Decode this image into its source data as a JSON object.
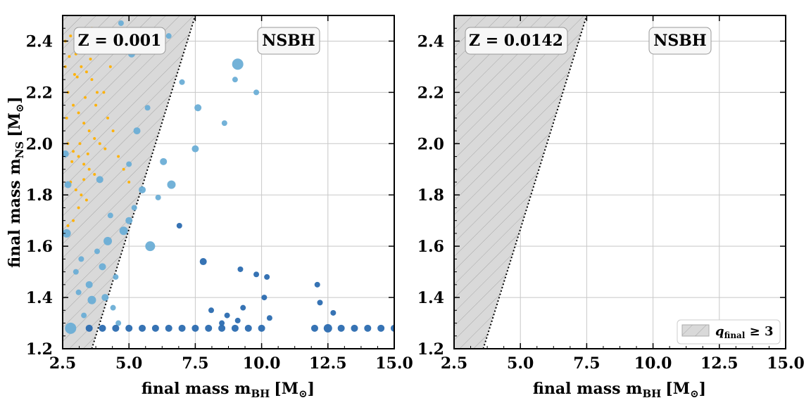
{
  "chart_data": [
    {
      "type": "scatter",
      "panel": "left",
      "xlabel": "final mass m_BH [M_⊙]",
      "ylabel": "final mass m_NS [M_⊙]",
      "xlim": [
        2.5,
        15.0
      ],
      "ylim": [
        1.2,
        2.5
      ],
      "xticks": [
        "2.5",
        "5.0",
        "7.5",
        "10.0",
        "12.5",
        "15.0"
      ],
      "yticks": [
        "1.2",
        "1.4",
        "1.6",
        "1.8",
        "2.0",
        "2.2",
        "2.4"
      ],
      "grid": true,
      "annotations": [
        "Z = 0.001",
        "NSBH"
      ],
      "shaded_region": {
        "label": "q_final ≥ 3",
        "boundary_ratio": 3,
        "color": "#d9d9d9",
        "hatch": "/"
      },
      "series": [
        {
          "color": "#ffb000",
          "points": [
            [
              2.6,
              2.4
            ],
            [
              2.8,
              2.42
            ],
            [
              3.0,
              2.35
            ],
            [
              3.2,
              2.3
            ],
            [
              3.4,
              2.28
            ],
            [
              3.6,
              2.25
            ],
            [
              3.8,
              2.2
            ],
            [
              2.7,
              2.2
            ],
            [
              2.9,
              2.15
            ],
            [
              3.1,
              2.12
            ],
            [
              3.3,
              2.08
            ],
            [
              3.5,
              2.05
            ],
            [
              3.7,
              2.02
            ],
            [
              3.9,
              2.0
            ],
            [
              4.1,
              1.98
            ],
            [
              2.7,
              2.0
            ],
            [
              2.9,
              1.97
            ],
            [
              3.1,
              1.95
            ],
            [
              3.3,
              1.92
            ],
            [
              3.5,
              1.9
            ],
            [
              3.7,
              1.88
            ],
            [
              2.8,
              1.85
            ],
            [
              3.0,
              1.82
            ],
            [
              3.2,
              1.8
            ],
            [
              3.4,
              1.78
            ],
            [
              2.9,
              1.7
            ],
            [
              2.7,
              1.68
            ],
            [
              4.2,
              2.1
            ],
            [
              4.4,
              2.05
            ],
            [
              4.6,
              1.95
            ],
            [
              4.8,
              1.9
            ],
            [
              5.0,
              1.85
            ],
            [
              4.3,
              2.3
            ],
            [
              4.0,
              2.4
            ],
            [
              3.6,
              2.45
            ],
            [
              2.6,
              2.3
            ],
            [
              2.65,
              2.1
            ],
            [
              3.05,
              2.26
            ],
            [
              3.35,
              2.18
            ],
            [
              3.15,
              2.0
            ],
            [
              2.85,
              1.93
            ],
            [
              3.45,
              1.96
            ],
            [
              3.25,
              2.38
            ],
            [
              2.75,
              2.34
            ],
            [
              3.75,
              2.15
            ],
            [
              4.05,
              2.2
            ],
            [
              3.55,
              2.33
            ],
            [
              2.95,
              2.27
            ],
            [
              3.1,
              1.75
            ],
            [
              3.3,
              1.86
            ]
          ],
          "sizes": [
            2,
            2,
            2,
            2,
            2,
            2,
            2,
            2,
            2,
            2,
            2,
            2,
            2,
            2,
            2,
            2,
            2,
            2,
            2,
            2,
            2,
            2,
            2,
            2,
            2,
            2,
            2,
            2,
            2,
            2,
            2,
            2,
            2,
            2,
            2,
            2,
            2,
            2,
            2,
            2,
            2,
            2,
            2,
            2,
            2,
            2,
            2,
            2,
            2,
            2
          ]
        },
        {
          "color": "#6baed6",
          "points": [
            [
              2.6,
              1.96
            ],
            [
              2.7,
              1.84
            ],
            [
              2.65,
              1.65
            ],
            [
              3.0,
              1.5
            ],
            [
              3.2,
              1.55
            ],
            [
              3.5,
              1.45
            ],
            [
              3.8,
              1.58
            ],
            [
              4.0,
              1.52
            ],
            [
              4.2,
              1.62
            ],
            [
              4.5,
              1.48
            ],
            [
              4.8,
              1.66
            ],
            [
              5.0,
              1.7
            ],
            [
              5.2,
              1.75
            ],
            [
              5.5,
              1.82
            ],
            [
              5.8,
              1.6
            ],
            [
              6.1,
              1.79
            ],
            [
              6.3,
              1.93
            ],
            [
              6.6,
              1.84
            ],
            [
              7.5,
              1.98
            ],
            [
              4.1,
              1.4
            ],
            [
              4.4,
              1.36
            ],
            [
              4.6,
              1.3
            ],
            [
              3.3,
              1.33
            ],
            [
              3.9,
              1.86
            ],
            [
              4.3,
              1.72
            ],
            [
              5.0,
              1.92
            ],
            [
              5.3,
              2.05
            ],
            [
              5.7,
              2.14
            ],
            [
              7.0,
              2.24
            ],
            [
              7.6,
              2.14
            ],
            [
              8.6,
              2.08
            ],
            [
              9.0,
              2.25
            ],
            [
              9.1,
              2.31
            ],
            [
              9.8,
              2.2
            ],
            [
              10.0,
              2.37
            ],
            [
              6.5,
              2.42
            ],
            [
              5.1,
              2.35
            ],
            [
              4.7,
              2.47
            ],
            [
              3.6,
              1.39
            ],
            [
              2.8,
              1.28
            ],
            [
              3.1,
              1.42
            ]
          ],
          "sizes": [
            5,
            5,
            6,
            4,
            4,
            5,
            4,
            5,
            6,
            4,
            6,
            5,
            4,
            5,
            7,
            4,
            5,
            6,
            5,
            5,
            4,
            4,
            4,
            5,
            4,
            4,
            5,
            4,
            4,
            5,
            4,
            4,
            8,
            4,
            5,
            4,
            5,
            4,
            6,
            8,
            4
          ]
        },
        {
          "color": "#2b6cb0",
          "points": [
            [
              3.5,
              1.28
            ],
            [
              4.0,
              1.28
            ],
            [
              4.5,
              1.28
            ],
            [
              5.0,
              1.28
            ],
            [
              5.5,
              1.28
            ],
            [
              6.0,
              1.28
            ],
            [
              6.5,
              1.28
            ],
            [
              7.0,
              1.28
            ],
            [
              7.5,
              1.28
            ],
            [
              8.0,
              1.28
            ],
            [
              8.5,
              1.28
            ],
            [
              9.0,
              1.28
            ],
            [
              9.5,
              1.28
            ],
            [
              10.0,
              1.28
            ],
            [
              12.0,
              1.28
            ],
            [
              12.5,
              1.28
            ],
            [
              13.0,
              1.28
            ],
            [
              13.5,
              1.28
            ],
            [
              14.0,
              1.28
            ],
            [
              14.5,
              1.28
            ],
            [
              15.0,
              1.28
            ],
            [
              6.9,
              1.68
            ],
            [
              7.8,
              1.54
            ],
            [
              9.2,
              1.51
            ],
            [
              9.8,
              1.49
            ],
            [
              10.2,
              1.48
            ],
            [
              12.1,
              1.45
            ],
            [
              8.1,
              1.35
            ],
            [
              8.7,
              1.33
            ],
            [
              9.3,
              1.36
            ],
            [
              10.1,
              1.4
            ],
            [
              10.3,
              1.32
            ],
            [
              12.2,
              1.38
            ],
            [
              12.7,
              1.34
            ],
            [
              8.5,
              1.3
            ],
            [
              9.1,
              1.31
            ]
          ],
          "sizes": [
            5,
            5,
            5,
            5,
            5,
            5,
            5,
            5,
            5,
            5,
            5,
            5,
            5,
            5,
            5,
            6,
            5,
            5,
            5,
            5,
            5,
            4,
            5,
            4,
            4,
            4,
            4,
            4,
            4,
            4,
            4,
            4,
            4,
            4,
            4,
            4
          ]
        }
      ]
    },
    {
      "type": "scatter",
      "panel": "right",
      "xlabel": "final mass m_BH [M_⊙]",
      "ylabel": "",
      "xlim": [
        2.5,
        15.0
      ],
      "ylim": [
        1.2,
        2.5
      ],
      "xticks": [
        "2.5",
        "5.0",
        "7.5",
        "10.0",
        "12.5",
        "15.0"
      ],
      "yticks": [
        "1.2",
        "1.4",
        "1.6",
        "1.8",
        "2.0",
        "2.2",
        "2.4"
      ],
      "grid": true,
      "annotations": [
        "Z = 0.0142",
        "NSBH"
      ],
      "legend": {
        "placement": "bottom-right",
        "entries": [
          "q_final ≥ 3"
        ]
      },
      "shaded_region": {
        "label": "q_final ≥ 3",
        "boundary_ratio": 3,
        "color": "#d9d9d9",
        "hatch": "/"
      },
      "series": []
    }
  ],
  "labels": {
    "left_z_box": "Z = 0.001",
    "left_nsbh_box": "NSBH",
    "right_z_box": "Z = 0.0142",
    "right_nsbh_box": "NSBH",
    "ylabel_text": "final mass m",
    "ylabel_sub": "NS",
    "xlabel_text": "final mass m",
    "xlabel_sub": "BH",
    "unit_text": "[M",
    "unit_sub": "⊙",
    "unit_close": "]",
    "legend_q": "q",
    "legend_sub": "final",
    "legend_rest": " ≥ 3"
  }
}
